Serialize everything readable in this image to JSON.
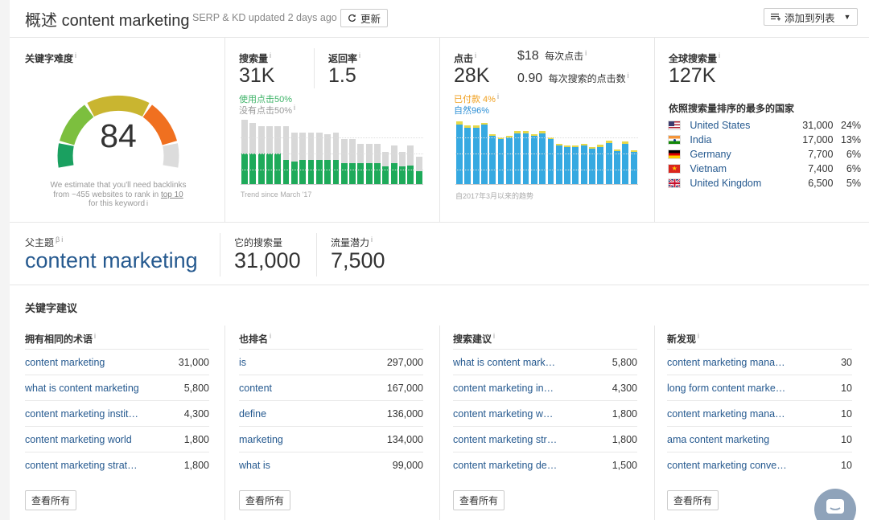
{
  "header": {
    "title_prefix": "概述",
    "keyword": "content marketing",
    "subtitle": "SERP & KD updated 2 days ago",
    "refresh_label": "更新",
    "add_to_list_label": "添加到列表"
  },
  "difficulty": {
    "label": "关键字难度",
    "score": "84",
    "note_line1": "We estimate that you'll need backlinks",
    "note_line2_a": "from ~455 websites to rank in ",
    "note_line2_link": "top 10",
    "note_line3": "for this keyword"
  },
  "volume": {
    "label": "搜索量",
    "value": "31K",
    "return_rate_label": "返回率",
    "return_rate_value": "1.5",
    "clicks_pct": "使用点击50%",
    "no_clicks_pct": "没有点击50%",
    "trend_label": "Trend since March '17",
    "chart": {
      "type": "bar",
      "series": [
        {
          "name": "使用点击",
          "color": "#1eaa5a",
          "values": [
            0.47,
            0.47,
            0.47,
            0.47,
            0.47,
            0.37,
            0.35,
            0.37,
            0.37,
            0.37,
            0.38,
            0.37,
            0.33,
            0.33,
            0.33,
            0.33,
            0.32,
            0.27,
            0.33,
            0.27,
            0.29,
            0.2
          ]
        },
        {
          "name": "没有点击",
          "color": "#d8d8d8",
          "values": [
            0.53,
            0.48,
            0.43,
            0.43,
            0.43,
            0.53,
            0.45,
            0.43,
            0.43,
            0.43,
            0.4,
            0.43,
            0.37,
            0.37,
            0.3,
            0.3,
            0.3,
            0.23,
            0.27,
            0.23,
            0.31,
            0.22
          ]
        }
      ]
    }
  },
  "clicks": {
    "label": "点击",
    "value": "28K",
    "cpc_value": "$18",
    "cpc_label": "每次点击",
    "cps_value": "0.90",
    "cps_label": "每次搜索的点击数",
    "paid_pct": "已付款 4%",
    "organic_pct": "自然96%",
    "trend_label": "自2017年3月以来的趋势",
    "chart": {
      "type": "bar",
      "series": [
        {
          "name": "自然",
          "color": "#36a9e1",
          "values": [
            0.93,
            0.88,
            0.88,
            0.92,
            0.75,
            0.7,
            0.72,
            0.79,
            0.79,
            0.75,
            0.79,
            0.7,
            0.6,
            0.57,
            0.57,
            0.6,
            0.55,
            0.58,
            0.64,
            0.51,
            0.63,
            0.5
          ]
        },
        {
          "name": "已付款",
          "color": "#e6d84a",
          "values": [
            0.04,
            0.03,
            0.03,
            0.03,
            0.03,
            0.03,
            0.03,
            0.03,
            0.03,
            0.03,
            0.03,
            0.03,
            0.03,
            0.03,
            0.03,
            0.03,
            0.03,
            0.03,
            0.03,
            0.03,
            0.03,
            0.03
          ]
        }
      ]
    }
  },
  "global": {
    "label": "全球搜索量",
    "value": "127K",
    "countries_title": "依照搜索量排序的最多的国家",
    "countries": [
      {
        "name": "United States",
        "volume": "31,000",
        "pct": "24%",
        "flag": "us-flag"
      },
      {
        "name": "India",
        "volume": "17,000",
        "pct": "13%",
        "flag": "india-flag"
      },
      {
        "name": "Germany",
        "volume": "7,700",
        "pct": "6%",
        "flag": "germany-flag"
      },
      {
        "name": "Vietnam",
        "volume": "7,400",
        "pct": "6%",
        "flag": "vietnam-flag"
      },
      {
        "name": "United Kingdom",
        "volume": "6,500",
        "pct": "5%",
        "flag": "uk-flag"
      }
    ]
  },
  "parent": {
    "label": "父主题",
    "topic": "content marketing",
    "volume_label": "它的搜索量",
    "volume_value": "31,000",
    "traffic_label": "流量潜力",
    "traffic_value": "7,500"
  },
  "ideas": {
    "title": "关键字建议",
    "see_all": "查看所有",
    "columns": [
      {
        "title": "拥有相同的术语",
        "rows": [
          {
            "kw": "content marketing",
            "vol": "31,000"
          },
          {
            "kw": "what is content marketing",
            "vol": "5,800"
          },
          {
            "kw": "content marketing instit…",
            "vol": "4,300"
          },
          {
            "kw": "content marketing world",
            "vol": "1,800"
          },
          {
            "kw": "content marketing strat…",
            "vol": "1,800"
          }
        ]
      },
      {
        "title": "也排名",
        "rows": [
          {
            "kw": "is",
            "vol": "297,000"
          },
          {
            "kw": "content",
            "vol": "167,000"
          },
          {
            "kw": "define",
            "vol": "136,000"
          },
          {
            "kw": "marketing",
            "vol": "134,000"
          },
          {
            "kw": "what is",
            "vol": "99,000"
          }
        ]
      },
      {
        "title": "搜索建议",
        "rows": [
          {
            "kw": "what is content mark…",
            "vol": "5,800"
          },
          {
            "kw": "content marketing in…",
            "vol": "4,300"
          },
          {
            "kw": "content marketing w…",
            "vol": "1,800"
          },
          {
            "kw": "content marketing str…",
            "vol": "1,800"
          },
          {
            "kw": "content marketing de…",
            "vol": "1,500"
          }
        ]
      },
      {
        "title": "新发现",
        "rows": [
          {
            "kw": "content marketing mana…",
            "vol": "30"
          },
          {
            "kw": "long form content marke…",
            "vol": "10"
          },
          {
            "kw": "content marketing mana…",
            "vol": "10"
          },
          {
            "kw": "ama content marketing",
            "vol": "10"
          },
          {
            "kw": "content marketing conve…",
            "vol": "10"
          }
        ]
      }
    ]
  },
  "colors": {
    "link": "#25598f",
    "green": "#3eb368",
    "organic_blue": "#36a9e1",
    "paid_yellow": "#e6d84a",
    "chat_button": "#8fa3ba"
  }
}
